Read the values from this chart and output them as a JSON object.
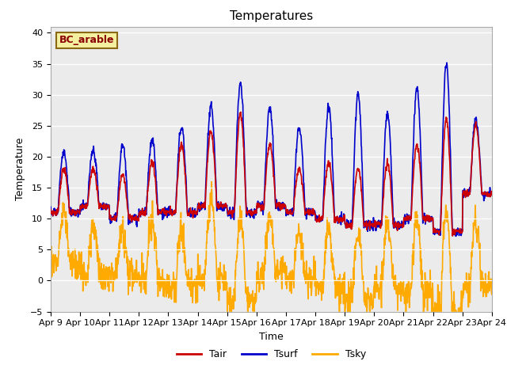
{
  "title": "Temperatures",
  "xlabel": "Time",
  "ylabel": "Temperature",
  "ylim": [
    -5,
    41
  ],
  "yticks": [
    -5,
    0,
    5,
    10,
    15,
    20,
    25,
    30,
    35,
    40
  ],
  "xtick_labels": [
    "Apr 9",
    "Apr 10",
    "Apr 11",
    "Apr 12",
    "Apr 13",
    "Apr 14",
    "Apr 15",
    "Apr 16",
    "Apr 17",
    "Apr 18",
    "Apr 19",
    "Apr 20",
    "Apr 21",
    "Apr 22",
    "Apr 23",
    "Apr 24"
  ],
  "site_label": "BC_arable",
  "line_colors": {
    "Tair": "#cc0000",
    "Tsurf": "#0000cc",
    "Tsky": "#ffaa00"
  },
  "line_widths": {
    "Tair": 1.2,
    "Tsurf": 1.2,
    "Tsky": 1.2
  },
  "fig_bg_color": "#ffffff",
  "plot_bg_color": "#ebebeb",
  "grid_color": "#ffffff",
  "title_fontsize": 11,
  "axis_label_fontsize": 9,
  "tick_fontsize": 8,
  "legend_fontsize": 9,
  "tair_min": [
    11,
    12,
    10,
    11,
    11,
    12,
    11,
    12,
    11,
    10,
    9,
    9,
    10,
    8,
    14
  ],
  "tair_max": [
    18,
    18,
    17,
    19,
    22,
    24,
    27,
    22,
    18,
    19,
    18,
    19,
    22,
    26,
    25
  ],
  "tsurf_min": [
    11,
    12,
    10,
    11,
    11,
    12,
    11,
    12,
    11,
    10,
    9,
    9,
    10,
    8,
    14
  ],
  "tsurf_max": [
    21,
    21,
    22,
    23,
    25,
    28,
    32,
    28,
    25,
    28,
    30,
    27,
    31,
    35,
    26
  ],
  "tsky_min": [
    3,
    1,
    1,
    0,
    -1,
    0,
    -3,
    1,
    0,
    -1,
    -3,
    -1,
    -2,
    -5,
    -1
  ],
  "tsky_max": [
    11,
    9,
    8,
    10,
    8,
    13,
    10,
    10,
    8,
    8,
    8,
    9,
    10,
    11,
    10
  ],
  "tsky_noise": 1.2,
  "tair_noise": 0.3,
  "tsurf_noise": 0.4
}
